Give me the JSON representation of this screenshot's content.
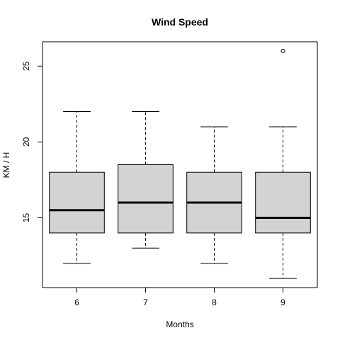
{
  "chart_data": {
    "type": "boxplot",
    "title": "Wind Speed",
    "xlabel": "Months",
    "ylabel": "KM / H",
    "categories": [
      "6",
      "7",
      "8",
      "9"
    ],
    "boxes": [
      {
        "category": "6",
        "whisker_low": 12,
        "q1": 14,
        "median": 15.5,
        "q3": 18,
        "whisker_high": 22,
        "outliers": []
      },
      {
        "category": "7",
        "whisker_low": 13,
        "q1": 14,
        "median": 16,
        "q3": 18.5,
        "whisker_high": 22,
        "outliers": []
      },
      {
        "category": "8",
        "whisker_low": 12,
        "q1": 14,
        "median": 16,
        "q3": 18,
        "whisker_high": 21,
        "outliers": []
      },
      {
        "category": "9",
        "whisker_low": 11,
        "q1": 14,
        "median": 15,
        "q3": 18,
        "whisker_high": 21,
        "outliers": [
          26
        ]
      }
    ],
    "yticks": [
      15,
      20,
      25
    ],
    "ylim": [
      10.4,
      26.6
    ],
    "xlim": [
      0.5,
      4.5
    ],
    "grid": false,
    "colors": {
      "box_fill": "#d3d3d3",
      "stroke": "#000000"
    }
  }
}
